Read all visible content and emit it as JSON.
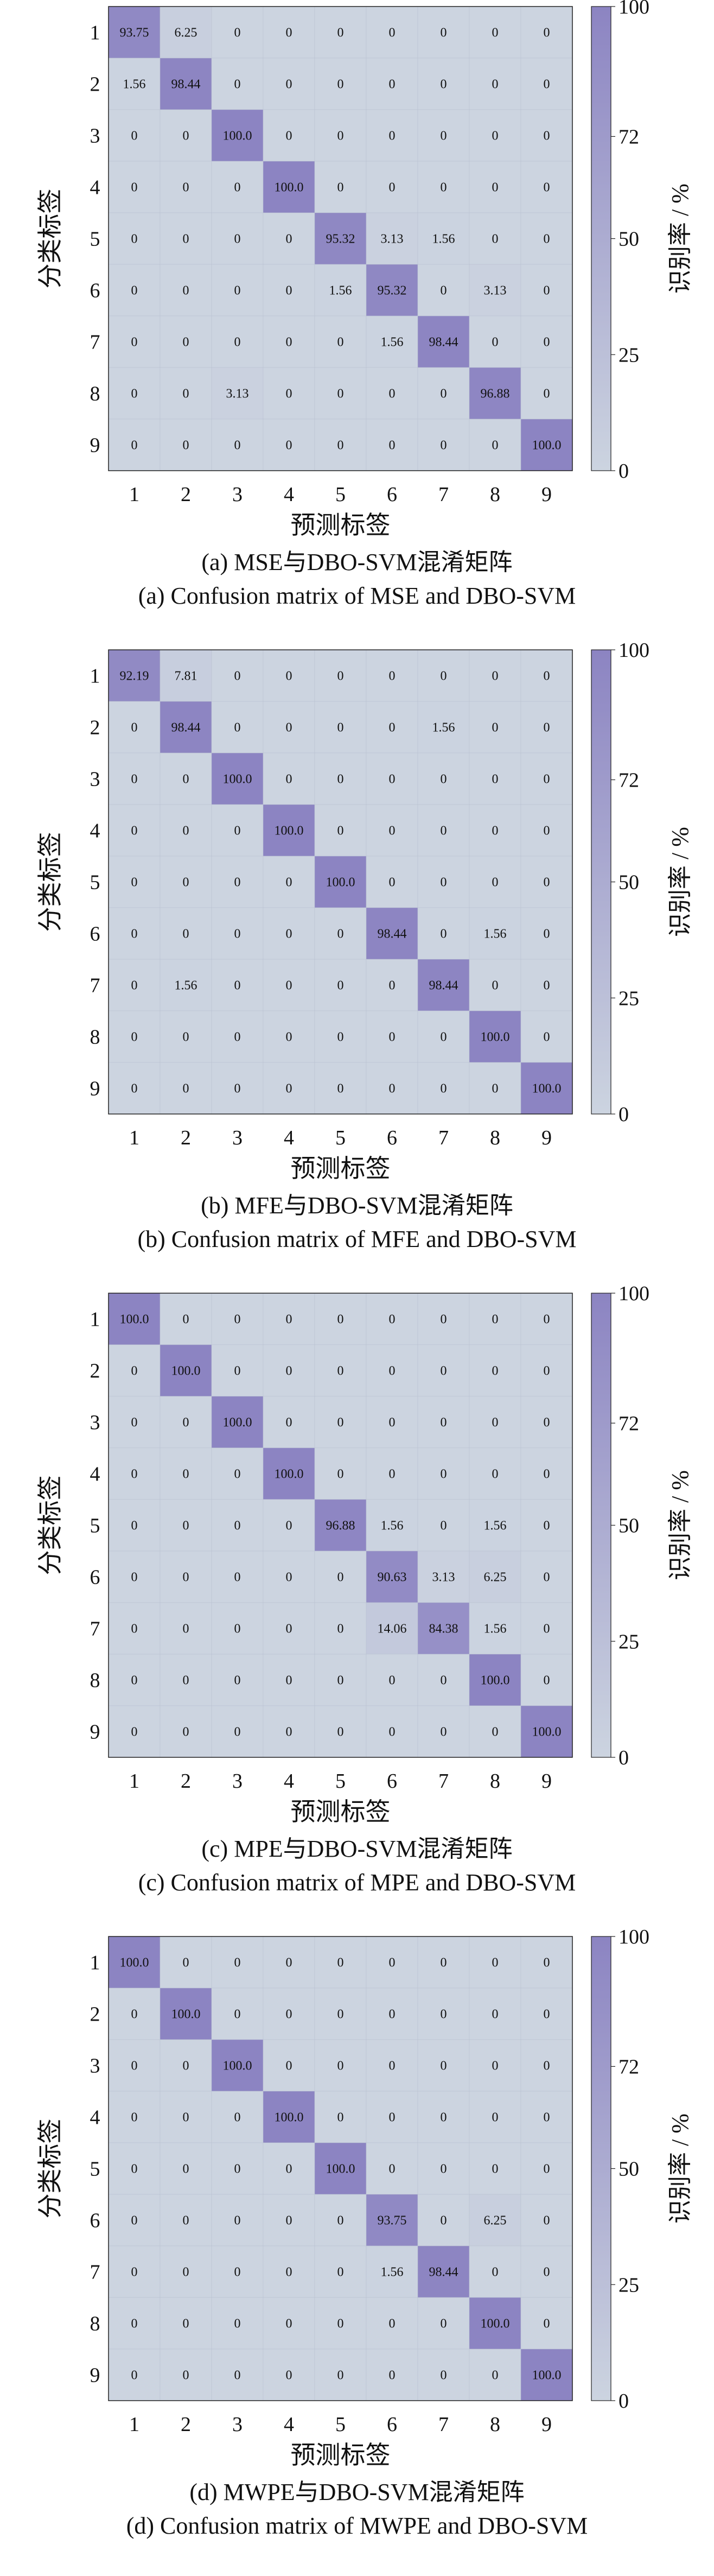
{
  "colors": {
    "background": "#ccd4e0",
    "cell_low": "#ccd4e0",
    "cell_high": "#8c84c2",
    "grid": "#b8c0d0",
    "text": "#111111"
  },
  "chart_data": [
    {
      "type": "heatmap",
      "title": "(a)  MSE与DBO-SVM混淆矩阵",
      "subtitle": "(a) Confusion matrix of MSE and DBO-SVM",
      "xlabel": "预测标签",
      "ylabel": "分类标签",
      "x_categories": [
        "1",
        "2",
        "3",
        "4",
        "5",
        "6",
        "7",
        "8",
        "9"
      ],
      "y_categories": [
        "1",
        "2",
        "3",
        "4",
        "5",
        "6",
        "7",
        "8",
        "9"
      ],
      "matrix": [
        [
          "93.75",
          "6.25",
          "0",
          "0",
          "0",
          "0",
          "0",
          "0",
          "0"
        ],
        [
          "1.56",
          "98.44",
          "0",
          "0",
          "0",
          "0",
          "0",
          "0",
          "0"
        ],
        [
          "0",
          "0",
          "100.0",
          "0",
          "0",
          "0",
          "0",
          "0",
          "0"
        ],
        [
          "0",
          "0",
          "0",
          "100.0",
          "0",
          "0",
          "0",
          "0",
          "0"
        ],
        [
          "0",
          "0",
          "0",
          "0",
          "95.32",
          "3.13",
          "1.56",
          "0",
          "0"
        ],
        [
          "0",
          "0",
          "0",
          "0",
          "1.56",
          "95.32",
          "0",
          "3.13",
          "0"
        ],
        [
          "0",
          "0",
          "0",
          "0",
          "0",
          "1.56",
          "98.44",
          "0",
          "0"
        ],
        [
          "0",
          "0",
          "3.13",
          "0",
          "0",
          "0",
          "0",
          "96.88",
          "0"
        ],
        [
          "0",
          "0",
          "0",
          "0",
          "0",
          "0",
          "0",
          "0",
          "100.0"
        ]
      ],
      "colorbar": {
        "label": "识别率 / %",
        "ticks": [
          "0",
          "25",
          "50",
          "72",
          "100"
        ],
        "range": [
          0,
          100
        ]
      }
    },
    {
      "type": "heatmap",
      "title": "(b)  MFE与DBO-SVM混淆矩阵",
      "subtitle": "(b) Confusion matrix of MFE and DBO-SVM",
      "xlabel": "预测标签",
      "ylabel": "分类标签",
      "x_categories": [
        "1",
        "2",
        "3",
        "4",
        "5",
        "6",
        "7",
        "8",
        "9"
      ],
      "y_categories": [
        "1",
        "2",
        "3",
        "4",
        "5",
        "6",
        "7",
        "8",
        "9"
      ],
      "matrix": [
        [
          "92.19",
          "7.81",
          "0",
          "0",
          "0",
          "0",
          "0",
          "0",
          "0"
        ],
        [
          "0",
          "98.44",
          "0",
          "0",
          "0",
          "0",
          "1.56",
          "0",
          "0"
        ],
        [
          "0",
          "0",
          "100.0",
          "0",
          "0",
          "0",
          "0",
          "0",
          "0"
        ],
        [
          "0",
          "0",
          "0",
          "100.0",
          "0",
          "0",
          "0",
          "0",
          "0"
        ],
        [
          "0",
          "0",
          "0",
          "0",
          "100.0",
          "0",
          "0",
          "0",
          "0"
        ],
        [
          "0",
          "0",
          "0",
          "0",
          "0",
          "98.44",
          "0",
          "1.56",
          "0"
        ],
        [
          "0",
          "1.56",
          "0",
          "0",
          "0",
          "0",
          "98.44",
          "0",
          "0"
        ],
        [
          "0",
          "0",
          "0",
          "0",
          "0",
          "0",
          "0",
          "100.0",
          "0"
        ],
        [
          "0",
          "0",
          "0",
          "0",
          "0",
          "0",
          "0",
          "0",
          "100.0"
        ]
      ],
      "colorbar": {
        "label": "识别率 / %",
        "ticks": [
          "0",
          "25",
          "50",
          "72",
          "100"
        ],
        "range": [
          0,
          100
        ]
      }
    },
    {
      "type": "heatmap",
      "title": "(c)  MPE与DBO-SVM混淆矩阵",
      "subtitle": "(c) Confusion matrix of MPE and DBO-SVM",
      "xlabel": "预测标签",
      "ylabel": "分类标签",
      "x_categories": [
        "1",
        "2",
        "3",
        "4",
        "5",
        "6",
        "7",
        "8",
        "9"
      ],
      "y_categories": [
        "1",
        "2",
        "3",
        "4",
        "5",
        "6",
        "7",
        "8",
        "9"
      ],
      "matrix": [
        [
          "100.0",
          "0",
          "0",
          "0",
          "0",
          "0",
          "0",
          "0",
          "0"
        ],
        [
          "0",
          "100.0",
          "0",
          "0",
          "0",
          "0",
          "0",
          "0",
          "0"
        ],
        [
          "0",
          "0",
          "100.0",
          "0",
          "0",
          "0",
          "0",
          "0",
          "0"
        ],
        [
          "0",
          "0",
          "0",
          "100.0",
          "0",
          "0",
          "0",
          "0",
          "0"
        ],
        [
          "0",
          "0",
          "0",
          "0",
          "96.88",
          "1.56",
          "0",
          "1.56",
          "0"
        ],
        [
          "0",
          "0",
          "0",
          "0",
          "0",
          "90.63",
          "3.13",
          "6.25",
          "0"
        ],
        [
          "0",
          "0",
          "0",
          "0",
          "0",
          "14.06",
          "84.38",
          "1.56",
          "0"
        ],
        [
          "0",
          "0",
          "0",
          "0",
          "0",
          "0",
          "0",
          "100.0",
          "0"
        ],
        [
          "0",
          "0",
          "0",
          "0",
          "0",
          "0",
          "0",
          "0",
          "100.0"
        ]
      ],
      "colorbar": {
        "label": "识别率 / %",
        "ticks": [
          "0",
          "25",
          "50",
          "72",
          "100"
        ],
        "range": [
          0,
          100
        ]
      }
    },
    {
      "type": "heatmap",
      "title": "(d)  MWPE与DBO-SVM混淆矩阵",
      "subtitle": "(d) Confusion matrix of MWPE and DBO-SVM",
      "xlabel": "预测标签",
      "ylabel": "分类标签",
      "x_categories": [
        "1",
        "2",
        "3",
        "4",
        "5",
        "6",
        "7",
        "8",
        "9"
      ],
      "y_categories": [
        "1",
        "2",
        "3",
        "4",
        "5",
        "6",
        "7",
        "8",
        "9"
      ],
      "matrix": [
        [
          "100.0",
          "0",
          "0",
          "0",
          "0",
          "0",
          "0",
          "0",
          "0"
        ],
        [
          "0",
          "100.0",
          "0",
          "0",
          "0",
          "0",
          "0",
          "0",
          "0"
        ],
        [
          "0",
          "0",
          "100.0",
          "0",
          "0",
          "0",
          "0",
          "0",
          "0"
        ],
        [
          "0",
          "0",
          "0",
          "100.0",
          "0",
          "0",
          "0",
          "0",
          "0"
        ],
        [
          "0",
          "0",
          "0",
          "0",
          "100.0",
          "0",
          "0",
          "0",
          "0"
        ],
        [
          "0",
          "0",
          "0",
          "0",
          "0",
          "93.75",
          "0",
          "6.25",
          "0"
        ],
        [
          "0",
          "0",
          "0",
          "0",
          "0",
          "1.56",
          "98.44",
          "0",
          "0"
        ],
        [
          "0",
          "0",
          "0",
          "0",
          "0",
          "0",
          "0",
          "100.0",
          "0"
        ],
        [
          "0",
          "0",
          "0",
          "0",
          "0",
          "0",
          "0",
          "0",
          "100.0"
        ]
      ],
      "colorbar": {
        "label": "识别率 / %",
        "ticks": [
          "0",
          "25",
          "50",
          "72",
          "100"
        ],
        "range": [
          0,
          100
        ]
      }
    }
  ]
}
